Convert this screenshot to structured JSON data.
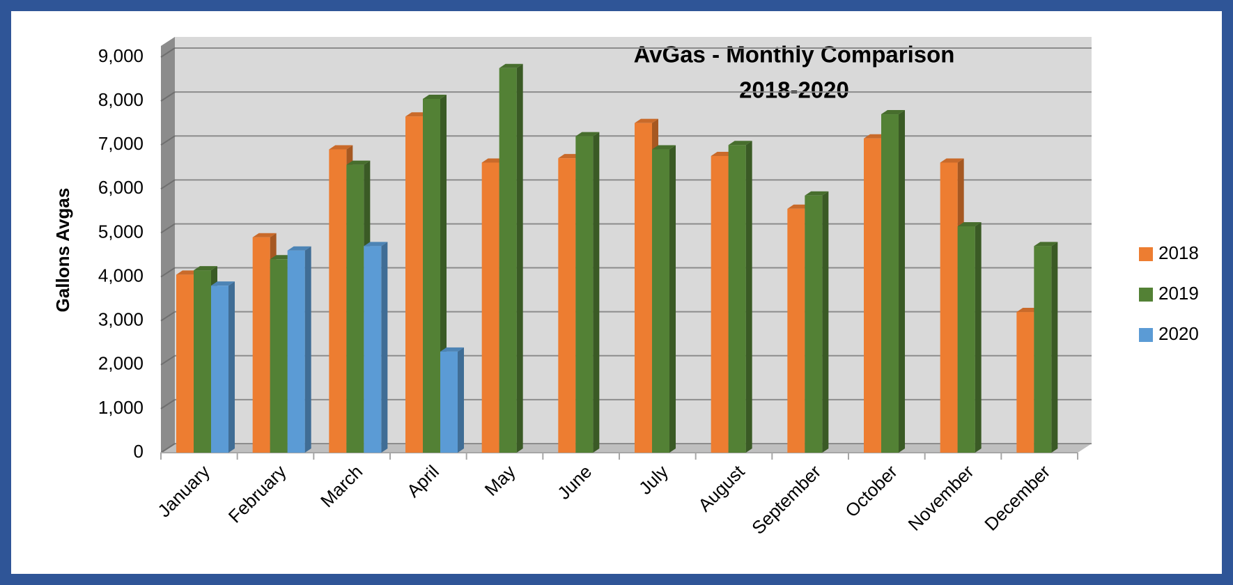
{
  "chart_data": {
    "type": "bar3d",
    "title": "AvGas - Monthly Comparison",
    "subtitle": "2018-2020",
    "y_label": "Gallons Avgas",
    "categories": [
      "January",
      "February",
      "March",
      "April",
      "May",
      "June",
      "July",
      "August",
      "September",
      "October",
      "November",
      "December"
    ],
    "series": [
      {
        "name": "2018",
        "color": "#ed7d31",
        "values": [
          4050,
          4900,
          6900,
          7650,
          6600,
          6700,
          7500,
          6750,
          5550,
          7150,
          6600,
          3200
        ]
      },
      {
        "name": "2019",
        "color": "#538135",
        "values": [
          4150,
          4400,
          6550,
          8050,
          8750,
          7200,
          6900,
          7000,
          5850,
          7700,
          5150,
          4700
        ]
      },
      {
        "name": "2020",
        "color": "#5b9bd5",
        "values": [
          3800,
          4600,
          4700,
          2300,
          null,
          null,
          null,
          null,
          null,
          null,
          null,
          null
        ]
      }
    ],
    "ylim": [
      0,
      9000
    ],
    "yticks": [
      0,
      {
        "value": 1000,
        "label": "1,000"
      },
      {
        "value": 2000,
        "label": "2,000"
      },
      {
        "value": 3000,
        "label": "3,000"
      },
      {
        "value": 4000,
        "label": "4,000"
      },
      {
        "value": 5000,
        "label": "5,000"
      },
      {
        "value": 6000,
        "label": "6,000"
      },
      {
        "value": 7000,
        "label": "7,000"
      },
      {
        "value": 8000,
        "label": "8,000"
      },
      {
        "value": 9000,
        "label": "9,000"
      }
    ],
    "grid": true,
    "legend": "right"
  }
}
